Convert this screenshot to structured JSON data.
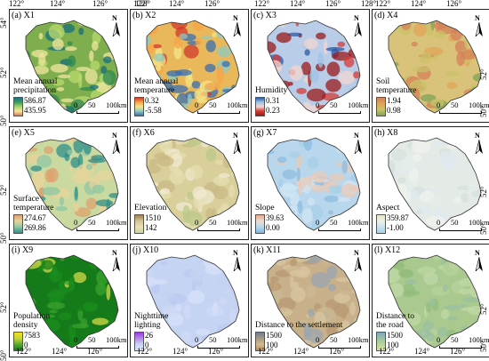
{
  "axes": {
    "top_ticks": [
      "122°",
      "124°",
      "126°",
      "128°"
    ],
    "bottom_ticks": [
      "122°",
      "124°",
      "126°"
    ],
    "lat_ticks": [
      "54°",
      "52°",
      "50°"
    ]
  },
  "north_label": "N",
  "scale_ticks": [
    "0",
    "50",
    "100km"
  ],
  "panels": [
    {
      "label": "(a) X1",
      "var": [
        "Mean annual",
        "precipitation"
      ],
      "max": "586.87",
      "min": "435.95",
      "fill": "#7fae4e",
      "colors": [
        "#f0e6a0",
        "#b8d96e",
        "#2e8a52",
        "#176e7a"
      ],
      "legend": [
        "#1d6f86",
        "#3c9c5c",
        "#a7d36b",
        "#f7e8a2",
        "#e07a52"
      ]
    },
    {
      "label": "(b) X2",
      "var": [
        "Mean annual",
        "temperature"
      ],
      "max": "0.32",
      "min": "-5.58",
      "fill": "#e8b85a",
      "colors": [
        "#d33a2c",
        "#f5a548",
        "#f3e68a",
        "#8fcbc0",
        "#3a6fb2"
      ],
      "legend": [
        "#d33a2c",
        "#f5a548",
        "#f3e68a",
        "#8fcbc0",
        "#3a6fb2"
      ]
    },
    {
      "label": "(c) X3",
      "var": [
        "Humidity"
      ],
      "max": "0.31",
      "min": "0.23",
      "fill": "#b9cde8",
      "colors": [
        "#2c5aa8",
        "#9ec2e6",
        "#f3d6d0",
        "#d83a34",
        "#9b1a1a"
      ],
      "legend": [
        "#2c5aa8",
        "#9ec2e6",
        "#f3d6d0",
        "#d83a34",
        "#9b1a1a"
      ]
    },
    {
      "label": "(d) X4",
      "var": [
        "Soil",
        "temperature"
      ],
      "max": "1.94",
      "min": "0.98",
      "fill": "#d9c27a",
      "colors": [
        "#7fa455",
        "#c9c26a",
        "#e0a458",
        "#d5805a"
      ],
      "legend": [
        "#d5805a",
        "#e0a458",
        "#c9c26a",
        "#7fa455"
      ]
    },
    {
      "label": "(e) X5",
      "var": [
        "Surface",
        "temperature"
      ],
      "max": "274.67",
      "min": "269.86",
      "fill": "#c9d9a0",
      "colors": [
        "#2f8f8a",
        "#8fc6a4",
        "#e7d39a",
        "#dea06e"
      ],
      "legend": [
        "#dea06e",
        "#e7d39a",
        "#8fc6a4",
        "#2f8f8a"
      ]
    },
    {
      "label": "(f) X6",
      "var": [
        "Elevation"
      ],
      "max": "1510",
      "min": "142",
      "fill": "#d8cf9a",
      "colors": [
        "#c9b884",
        "#e5ddb0",
        "#bcc88a",
        "#f0ead0"
      ],
      "legend": [
        "#9e7e52",
        "#d6c596",
        "#e9e0b6",
        "#c8d59c"
      ]
    },
    {
      "label": "(g) X7",
      "var": [
        "Slope"
      ],
      "max": "39.63",
      "min": "0.00",
      "fill": "#b8d6ec",
      "colors": [
        "#8dbce0",
        "#d0e6f4",
        "#e8c9b8",
        "#a7cfe8"
      ],
      "legend": [
        "#e8a890",
        "#e9dcd0",
        "#b8d8ee",
        "#7ab8e0"
      ]
    },
    {
      "label": "(h) X8",
      "var": [
        "Aspect"
      ],
      "max": "359.87",
      "min": "-1.00",
      "fill": "#e4ebe6",
      "colors": [
        "#d5e2dc",
        "#f0f2ec",
        "#e6eee8",
        "#dfe8f0"
      ],
      "legend": [
        "#e9e6c8",
        "#ecefe6",
        "#c9e2f0",
        "#a7d4ea"
      ]
    },
    {
      "label": "(i) X9",
      "var": [
        "Population",
        "density"
      ],
      "max": "7583",
      "min": "0",
      "fill": "#157a1a",
      "colors": [
        "#138016",
        "#1a8c1e",
        "#d6d84a",
        "#3aa32e"
      ],
      "legend": [
        "#f2e020",
        "#c5d63a",
        "#5aa832",
        "#157a1a"
      ]
    },
    {
      "label": "(j) X10",
      "var": [
        "Nighttime",
        "lighting"
      ],
      "max": "26",
      "min": "0",
      "fill": "#c6d4f4",
      "colors": [
        "#c4d2f2",
        "#cfdaf6",
        "#b9c9ef",
        "#d6e0f8"
      ],
      "legend": [
        "#9a3ae0",
        "#b58ae8",
        "#c9d6f4",
        "#dbe4f8"
      ]
    },
    {
      "label": "(k) X11",
      "var": [
        "Distance to the settlement"
      ],
      "max": "1500",
      "min": "100",
      "fill": "#c7b08a",
      "colors": [
        "#b89a72",
        "#d8c6a0",
        "#9aa6b0",
        "#cbb892"
      ],
      "legend": [
        "#6f7e8e",
        "#a49a86",
        "#d3bb8e",
        "#b88a60"
      ]
    },
    {
      "label": "(l) X12",
      "var": [
        "Distance to",
        "the road"
      ],
      "max": "1500",
      "min": "100",
      "fill": "#a9c98e",
      "colors": [
        "#93bc7c",
        "#c2d8a6",
        "#9bbfa0",
        "#b6d19a"
      ],
      "legend": [
        "#7ea7c0",
        "#9bc4a4",
        "#b9d69a",
        "#d6e2ae"
      ]
    }
  ]
}
